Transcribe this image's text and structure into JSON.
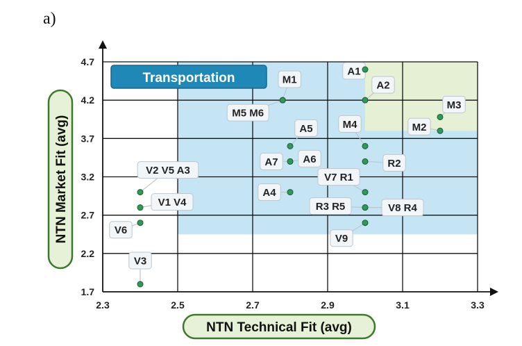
{
  "panel_label": "a)",
  "chart_data": {
    "type": "scatter",
    "title": "Transportation",
    "xlabel": "NTN Technical Fit (avg)",
    "ylabel": "NTN Market Fit (avg)",
    "xlim": [
      2.3,
      3.3
    ],
    "ylim": [
      1.7,
      4.7
    ],
    "xticks": [
      "2.3",
      "2.5",
      "2.7",
      "2.9",
      "3.1",
      "3.3"
    ],
    "yticks": [
      "1.7",
      "2.2",
      "2.7",
      "3.2",
      "3.7",
      "4.2",
      "4.7"
    ],
    "grid": true,
    "regions": [
      {
        "name": "blue-region",
        "x": [
          2.5,
          3.3
        ],
        "y": [
          2.45,
          4.7
        ],
        "color": "#c5e5f5"
      },
      {
        "name": "green-region",
        "x": [
          3.0,
          3.3
        ],
        "y": [
          3.8,
          4.7
        ],
        "color": "#e6f0d4"
      }
    ],
    "points": [
      {
        "label": "A1",
        "x": 3.0,
        "y": 4.6
      },
      {
        "label": "A2",
        "x": 3.0,
        "y": 4.2
      },
      {
        "label": "M1",
        "x": 2.78,
        "y": 4.2
      },
      {
        "label": "M5 M6",
        "x": 2.78,
        "y": 4.2
      },
      {
        "label": "M3",
        "x": 3.2,
        "y": 3.98
      },
      {
        "label": "M2",
        "x": 3.2,
        "y": 3.8
      },
      {
        "label": "M4",
        "x": 3.0,
        "y": 3.6
      },
      {
        "label": "A5",
        "x": 2.8,
        "y": 3.6
      },
      {
        "label": "A6",
        "x": 2.8,
        "y": 3.4
      },
      {
        "label": "A7",
        "x": 2.8,
        "y": 3.4
      },
      {
        "label": "R2",
        "x": 3.0,
        "y": 3.4
      },
      {
        "label": "V2 V5 A3",
        "x": 2.4,
        "y": 3.0
      },
      {
        "label": "V7 R1",
        "x": 3.0,
        "y": 3.0
      },
      {
        "label": "A4",
        "x": 2.8,
        "y": 3.0
      },
      {
        "label": "V1 V4",
        "x": 2.4,
        "y": 2.8
      },
      {
        "label": "R3 R5",
        "x": 3.0,
        "y": 2.8
      },
      {
        "label": "V8 R4",
        "x": 3.0,
        "y": 2.8
      },
      {
        "label": "V6",
        "x": 2.4,
        "y": 2.6
      },
      {
        "label": "V9",
        "x": 3.0,
        "y": 2.6
      },
      {
        "label": "V3",
        "x": 2.4,
        "y": 1.8
      }
    ]
  },
  "colors": {
    "point": "#2e9a58",
    "point_stroke": "#1a5e34",
    "title_fill": "#1f88b7",
    "title_border": "#17698f",
    "axis_label_fill": "#e7f1d7",
    "axis_label_border": "#3a7a2a",
    "callout_fill": "#f3f6f8",
    "callout_border": "#bcc6cc"
  }
}
